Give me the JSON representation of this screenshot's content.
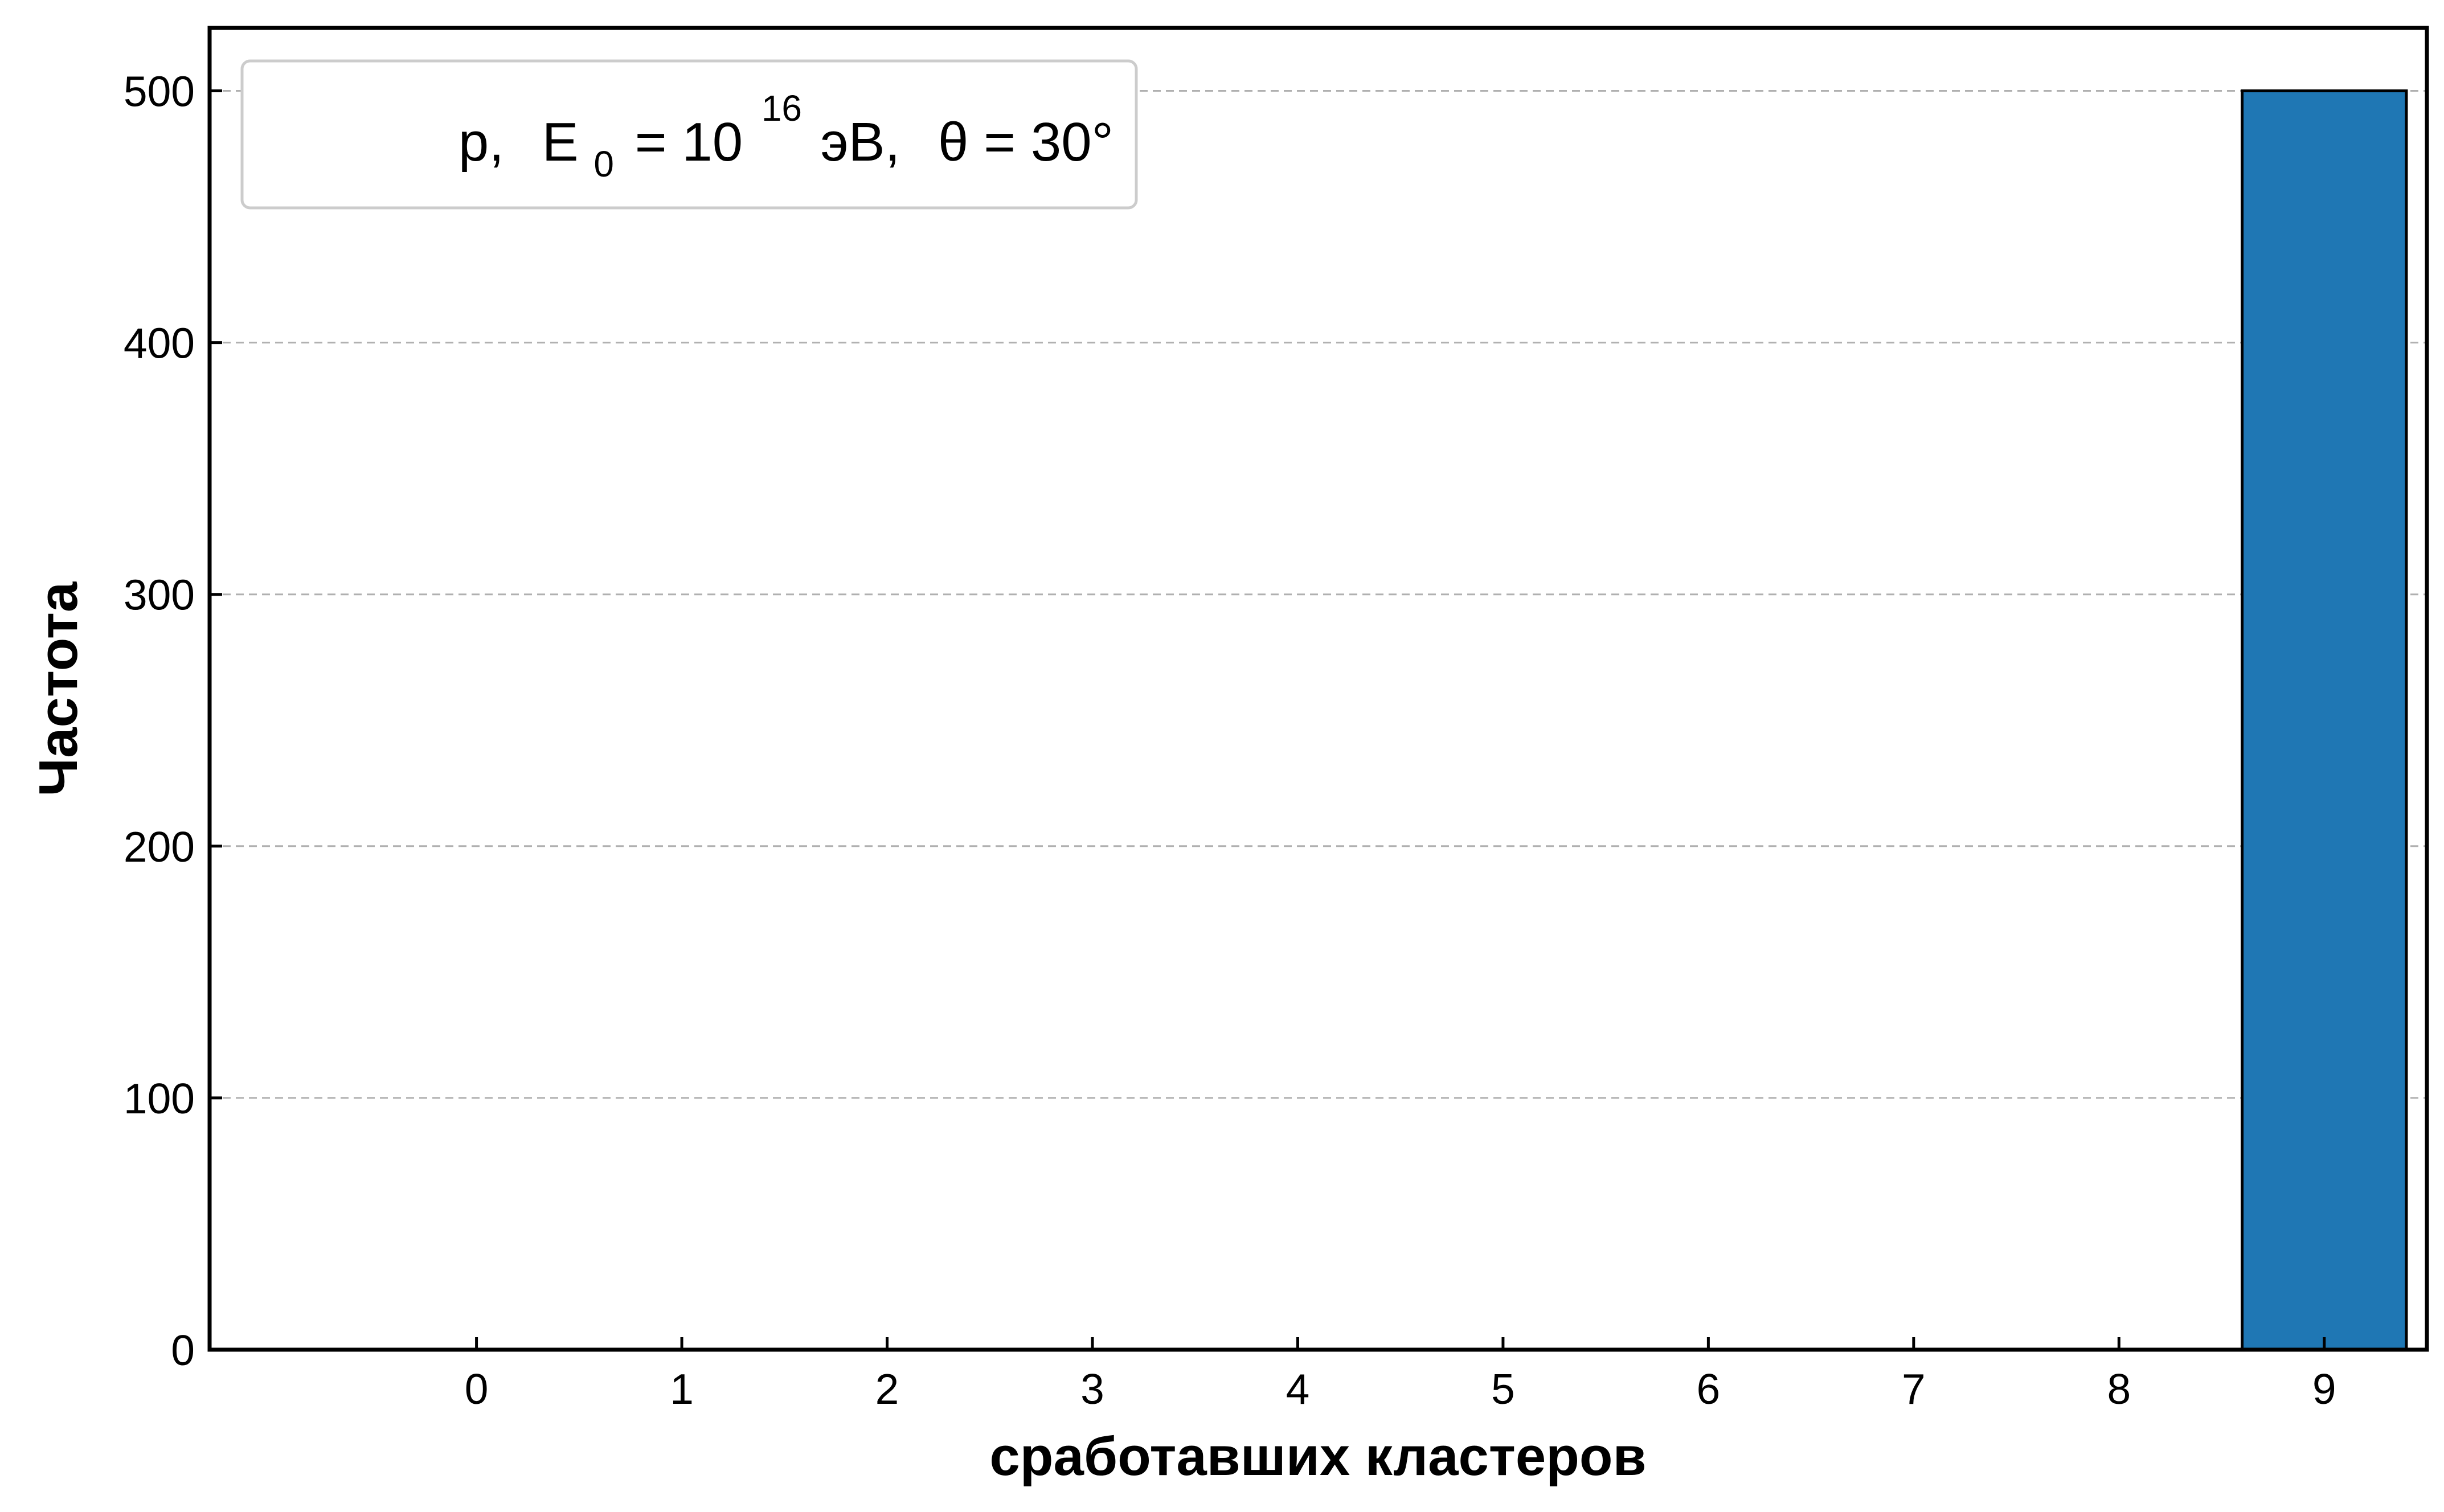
{
  "chart_data": {
    "type": "bar",
    "categories": [
      "0",
      "1",
      "2",
      "3",
      "4",
      "5",
      "6",
      "7",
      "8",
      "9"
    ],
    "values": [
      0,
      0,
      0,
      0,
      0,
      0,
      0,
      0,
      0,
      500
    ],
    "title": "",
    "xlabel": "сработавших кластеров",
    "ylabel": "Частота",
    "ylim": [
      0,
      525
    ],
    "yticks": [
      0,
      100,
      200,
      300,
      400,
      500
    ],
    "grid": "y-dashed",
    "legend_position": "top-left",
    "legend": {
      "particle": "p,",
      "energy_symbol": "E",
      "energy_subscript": "0",
      "energy_eq": "= 10",
      "energy_exponent": "16",
      "energy_unit": "эВ,",
      "angle": "θ = 30°"
    },
    "bar_color": "#1f77b4"
  }
}
